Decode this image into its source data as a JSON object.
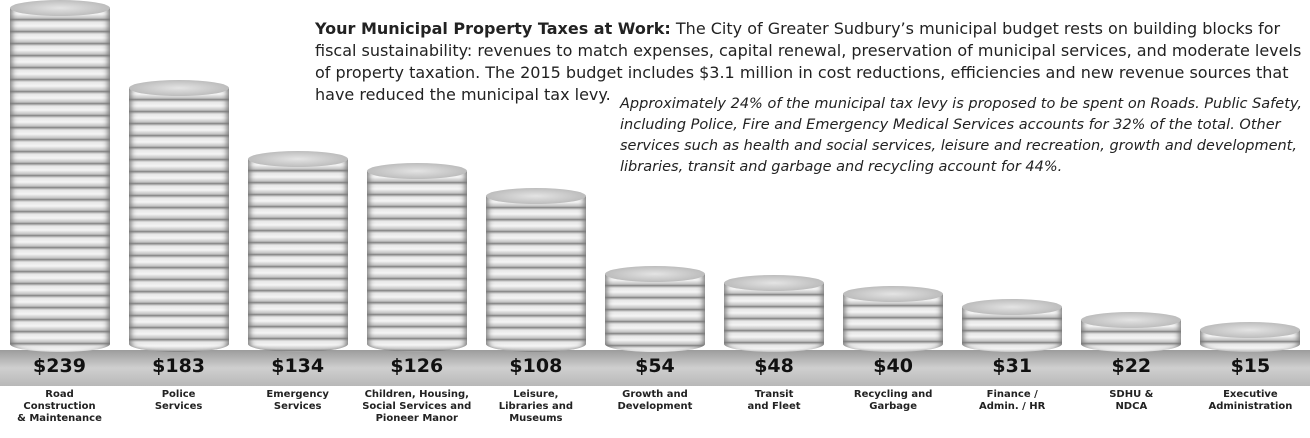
{
  "chart_data": {
    "type": "bar",
    "intro_lead": "Your Municipal Property Taxes at Work:",
    "intro_text": "The City of Greater Sudbury’s municipal budget rests on building blocks for fiscal sustainability: revenues to match expenses, capital renewal, preservation of municipal services, and moderate levels of property taxation. The 2015 budget includes $3.1 million in cost reductions, efficiencies and new revenue sources that have reduced the municipal tax levy.",
    "note": "Approximately 24% of the municipal tax levy is proposed to be spent on Roads. Public Safety, including Police, Fire and Emergency Medical Services accounts for 32% of the total. Other services such as health and social services, leisure and recreation, growth and development, libraries, transit and garbage and recycling account for 44%.",
    "categories": [
      "Road\nConstruction\n& Maintenance",
      "Police\nServices",
      "Emergency\nServices",
      "Children, Housing,\nSocial Services and\nPioneer Manor",
      "Leisure,\nLibraries and\nMuseums",
      "Growth and\nDevelopment",
      "Transit\nand Fleet",
      "Recycling and\nGarbage",
      "Finance /\nAdmin. / HR",
      "SDHU &\nNDCA",
      "Executive\nAdministration"
    ],
    "values": [
      239,
      183,
      134,
      126,
      108,
      54,
      48,
      40,
      31,
      22,
      15
    ],
    "value_labels": [
      "$239",
      "$183",
      "$134",
      "$126",
      "$108",
      "$54",
      "$48",
      "$40",
      "$31",
      "$22",
      "$15"
    ]
  }
}
